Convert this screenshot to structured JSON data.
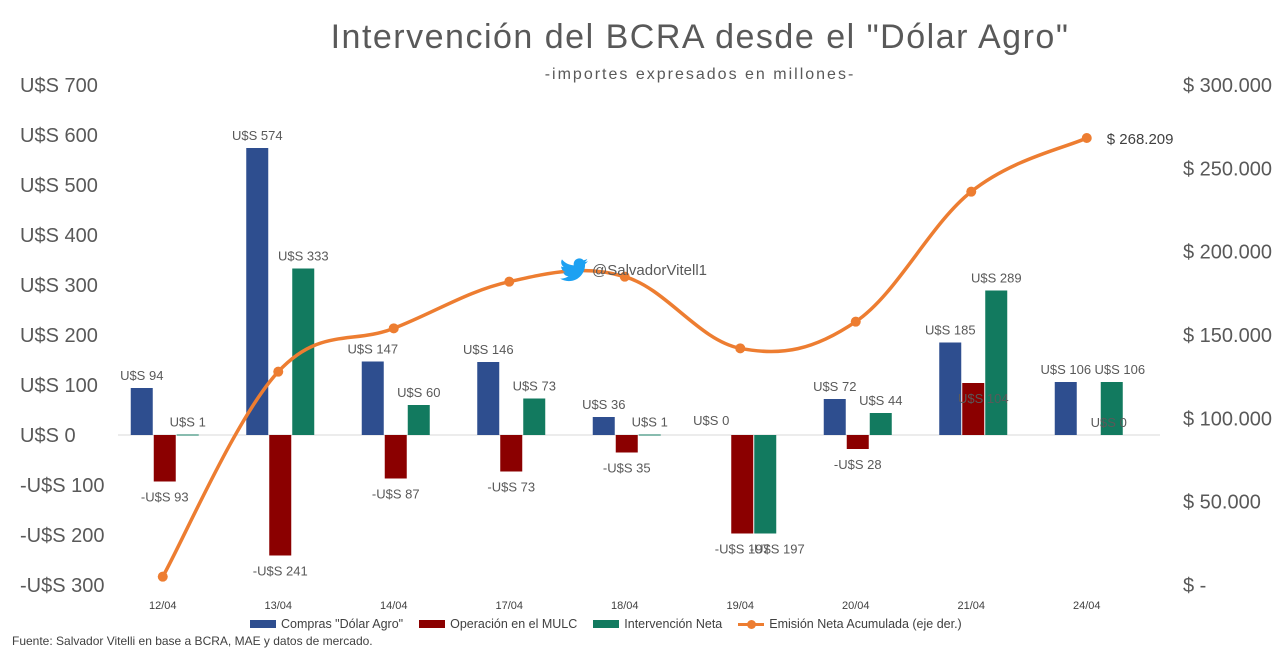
{
  "title": "Intervención del BCRA desde el \"Dólar Agro\"",
  "subtitle": "-importes expresados en millones-",
  "source": "Fuente: Salvador Vitelli en base a BCRA, MAE y datos de mercado.",
  "watermark": "@SalvadorVitell1",
  "colors": {
    "compras": "#2E4E8F",
    "mulc": "#8B0000",
    "neta": "#127A5F",
    "emision": "#ED7D31"
  },
  "chart_data": {
    "type": "bar",
    "categories": [
      "12/04",
      "13/04",
      "14/04",
      "17/04",
      "18/04",
      "19/04",
      "20/04",
      "21/04",
      "24/04"
    ],
    "series": [
      {
        "name": "Compras \"Dólar Agro\"",
        "values": [
          94,
          574,
          147,
          146,
          36,
          0,
          72,
          185,
          106
        ],
        "labels": [
          "U$S 94",
          "U$S 574",
          "U$S 147",
          "U$S 146",
          "U$S 36",
          "U$S 0",
          "U$S 72",
          "U$S 185",
          "U$S 106"
        ]
      },
      {
        "name": "Operación en el MULC",
        "values": [
          -93,
          -241,
          -87,
          -73,
          -35,
          -197,
          -28,
          104,
          0
        ],
        "labels": [
          "-U$S 93",
          "-U$S 241",
          "-U$S 87",
          "-U$S 73",
          "-U$S 35",
          "-U$S 197",
          "-U$S 28",
          "U$S 104",
          "U$S 0"
        ]
      },
      {
        "name": "Intervención Neta",
        "values": [
          1,
          333,
          60,
          73,
          1,
          -197,
          44,
          289,
          106
        ],
        "labels": [
          "U$S 1",
          "U$S 333",
          "U$S 60",
          "U$S 73",
          "U$S 1",
          "-U$S 197",
          "U$S 44",
          "U$S 289",
          "U$S 106"
        ]
      },
      {
        "name": "Emisión Neta Acumulada (eje der.)",
        "type": "line",
        "axis": "right",
        "values": [
          5000,
          128000,
          154000,
          182000,
          185000,
          142000,
          158000,
          236000,
          268209
        ],
        "labels": [
          "",
          "",
          "",
          "",
          "",
          "",
          "",
          "",
          "$ 268.209"
        ]
      }
    ],
    "ylim_left": [
      -300,
      700
    ],
    "ylim_right": [
      0,
      300000
    ],
    "yticks_left": [
      "U$S 700",
      "U$S 600",
      "U$S 500",
      "U$S 400",
      "U$S 300",
      "U$S 200",
      "U$S 100",
      "U$S 0",
      "-U$S 100",
      "-U$S 200",
      "-U$S 300"
    ],
    "yticks_right": [
      "$ 300.000",
      "$ 250.000",
      "$ 200.000",
      "$ 150.000",
      "$ 100.000",
      "$ 50.000",
      "$ -"
    ],
    "legend_position": "bottom",
    "grid": false
  }
}
